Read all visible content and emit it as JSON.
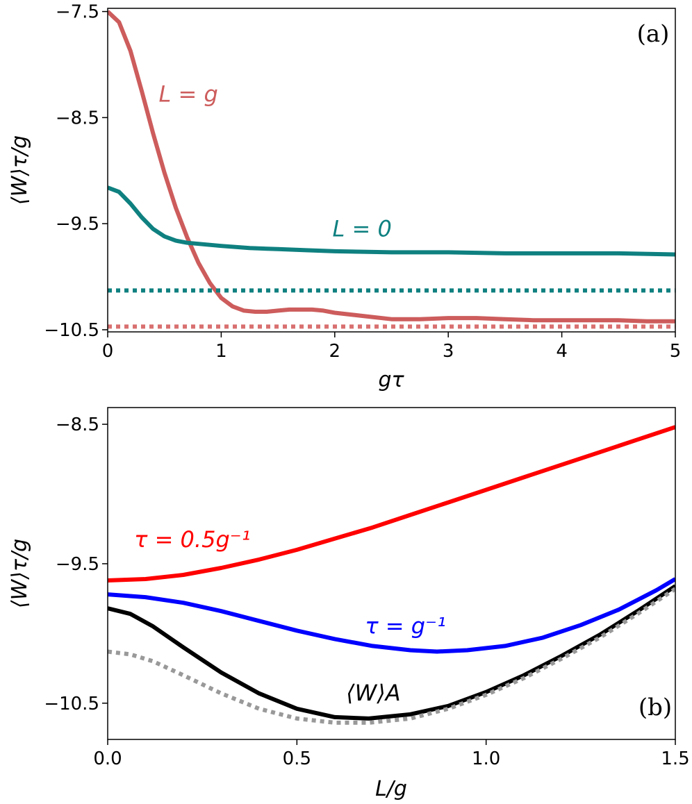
{
  "chart_data": [
    {
      "type": "line",
      "panel_label": "(a)",
      "xlabel": "gτ",
      "ylabel": "⟨W⟩τ/g",
      "xlim": [
        0,
        5
      ],
      "ylim": [
        -10.52,
        -7.47
      ],
      "xticks": [
        0,
        1,
        2,
        3,
        4,
        5
      ],
      "xtick_labels": [
        "0",
        "1",
        "2",
        "3",
        "4",
        "5"
      ],
      "yticks": [
        -7.5,
        -8.5,
        -9.5,
        -10.5
      ],
      "ytick_labels": [
        "−7.5",
        "−8.5",
        "−9.5",
        "−10.5"
      ],
      "grid": false,
      "series": [
        {
          "label": "L = g",
          "color": "#cd5c5c",
          "style": "solid",
          "x": [
            0,
            0.1,
            0.2,
            0.3,
            0.4,
            0.5,
            0.6,
            0.7,
            0.8,
            0.9,
            1.0,
            1.1,
            1.2,
            1.3,
            1.4,
            1.5,
            1.6,
            1.7,
            1.8,
            1.9,
            2.0,
            2.25,
            2.5,
            2.75,
            3.0,
            3.25,
            3.5,
            3.75,
            4.0,
            4.25,
            4.5,
            4.75,
            5.0
          ],
          "y": [
            -7.5,
            -7.6,
            -7.87,
            -8.25,
            -8.65,
            -9.02,
            -9.35,
            -9.63,
            -9.87,
            -10.06,
            -10.2,
            -10.28,
            -10.32,
            -10.33,
            -10.33,
            -10.32,
            -10.31,
            -10.31,
            -10.31,
            -10.32,
            -10.34,
            -10.37,
            -10.4,
            -10.4,
            -10.39,
            -10.39,
            -10.4,
            -10.41,
            -10.41,
            -10.41,
            -10.41,
            -10.42,
            -10.42
          ]
        },
        {
          "label": "L = 0",
          "color": "#0f8080",
          "style": "solid",
          "x": [
            0,
            0.1,
            0.2,
            0.3,
            0.4,
            0.5,
            0.6,
            0.7,
            0.8,
            1.0,
            1.25,
            1.5,
            1.75,
            2.0,
            2.5,
            3.0,
            3.5,
            4.0,
            4.5,
            5.0
          ],
          "y": [
            -9.16,
            -9.2,
            -9.31,
            -9.44,
            -9.55,
            -9.62,
            -9.66,
            -9.68,
            -9.69,
            -9.71,
            -9.73,
            -9.74,
            -9.75,
            -9.76,
            -9.77,
            -9.77,
            -9.78,
            -9.78,
            -9.78,
            -9.79
          ]
        },
        {
          "color": "#0f8080",
          "style": "dotted",
          "x": [
            0,
            5
          ],
          "y": [
            -10.13,
            -10.13
          ]
        },
        {
          "color": "#d97070",
          "style": "dotted",
          "x": [
            0,
            5
          ],
          "y": [
            -10.47,
            -10.47
          ]
        }
      ],
      "annotations": [
        {
          "text": "L = g",
          "x": 0.45,
          "y": -8.35,
          "color": "#cd5c5c"
        },
        {
          "text": "L = 0",
          "x": 1.98,
          "y": -9.62,
          "color": "#0f8080"
        }
      ]
    },
    {
      "type": "line",
      "panel_label": "(b)",
      "xlabel": "L/g",
      "ylabel": "⟨W⟩τ/g",
      "xlim": [
        0,
        1.5
      ],
      "ylim": [
        -10.76,
        -8.38
      ],
      "xticks": [
        0.0,
        0.5,
        1.0,
        1.5
      ],
      "xtick_labels": [
        "0.0",
        "0.5",
        "1.0",
        "1.5"
      ],
      "yticks": [
        -8.5,
        -9.5,
        -10.5
      ],
      "ytick_labels": [
        "−8.5",
        "−9.5",
        "−10.5"
      ],
      "grid": false,
      "series": [
        {
          "label": "τ = 0.5g⁻¹",
          "color": "#ff0000",
          "style": "solid",
          "x": [
            0,
            0.1,
            0.2,
            0.3,
            0.4,
            0.5,
            0.6,
            0.7,
            0.8,
            0.9,
            1.0,
            1.1,
            1.2,
            1.3,
            1.4,
            1.5
          ],
          "y": [
            -9.62,
            -9.61,
            -9.58,
            -9.53,
            -9.47,
            -9.4,
            -9.32,
            -9.24,
            -9.15,
            -9.06,
            -8.97,
            -8.88,
            -8.79,
            -8.7,
            -8.61,
            -8.52
          ]
        },
        {
          "label": "τ = g⁻¹",
          "color": "#0000ff",
          "style": "solid",
          "x": [
            0,
            0.1,
            0.2,
            0.3,
            0.4,
            0.5,
            0.6,
            0.7,
            0.8,
            0.87,
            0.95,
            1.05,
            1.15,
            1.25,
            1.35,
            1.45,
            1.5
          ],
          "y": [
            -9.72,
            -9.74,
            -9.78,
            -9.84,
            -9.91,
            -9.98,
            -10.04,
            -10.09,
            -10.12,
            -10.13,
            -10.12,
            -10.09,
            -10.03,
            -9.94,
            -9.83,
            -9.69,
            -9.61
          ]
        },
        {
          "label": "⟨W⟩A",
          "color": "#000000",
          "style": "solid",
          "x": [
            0,
            0.06,
            0.12,
            0.2,
            0.3,
            0.4,
            0.5,
            0.6,
            0.69,
            0.8,
            0.9,
            1.0,
            1.1,
            1.2,
            1.3,
            1.4,
            1.5
          ],
          "y": [
            -9.82,
            -9.86,
            -9.95,
            -10.1,
            -10.28,
            -10.43,
            -10.54,
            -10.6,
            -10.61,
            -10.58,
            -10.52,
            -10.42,
            -10.3,
            -10.16,
            -10.01,
            -9.84,
            -9.66
          ]
        },
        {
          "color": "#999999",
          "style": "dotted",
          "x": [
            0,
            0.06,
            0.12,
            0.2,
            0.3,
            0.4,
            0.5,
            0.6,
            0.69,
            0.8,
            0.9,
            1.0,
            1.1,
            1.2,
            1.3,
            1.4,
            1.5
          ],
          "y": [
            -10.13,
            -10.15,
            -10.2,
            -10.3,
            -10.43,
            -10.54,
            -10.61,
            -10.64,
            -10.64,
            -10.61,
            -10.54,
            -10.44,
            -10.32,
            -10.18,
            -10.03,
            -9.86,
            -9.68
          ]
        }
      ],
      "annotations": [
        {
          "text": "τ = 0.5g⁻¹",
          "x": 0.07,
          "y": -9.38,
          "color": "#ff0000"
        },
        {
          "text": "τ = g⁻¹",
          "x": 0.68,
          "y": -10.0,
          "color": "#0000ff"
        },
        {
          "text": "⟨W⟩A",
          "x": 0.63,
          "y": -10.48,
          "color": "#000000"
        }
      ]
    }
  ]
}
